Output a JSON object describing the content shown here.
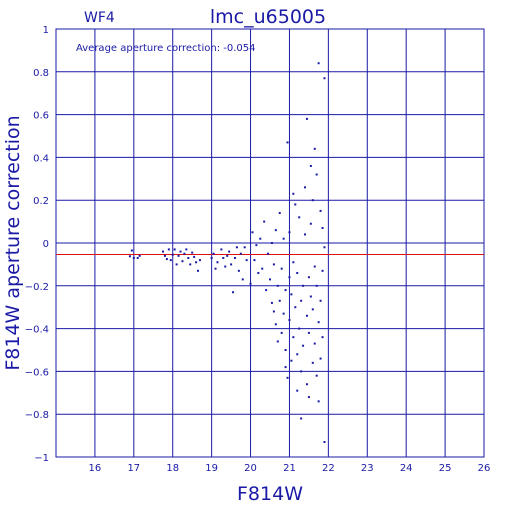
{
  "chart_data": {
    "type": "scatter",
    "title": "lmc_u65005",
    "chip_label": "WF4",
    "annotation": "Average aperture correction: -0.054",
    "xlabel": "F814W",
    "ylabel": "F814W aperture correction",
    "xlim": [
      15,
      26
    ],
    "ylim": [
      -1,
      1
    ],
    "x_ticks": [
      16,
      17,
      18,
      19,
      20,
      21,
      22,
      23,
      24,
      25,
      26
    ],
    "y_ticks": [
      -1,
      -0.8,
      -0.6,
      -0.4,
      -0.2,
      0,
      0.2,
      0.4,
      0.6,
      0.8,
      1
    ],
    "grid": true,
    "reference_line": {
      "y": -0.054,
      "color": "#dd1111"
    },
    "colors": {
      "axes": "#1a1aa6",
      "points": "#1a1aa6",
      "reference": "#dd1111"
    },
    "points": [
      [
        16.9,
        -0.062
      ],
      [
        16.95,
        -0.035
      ],
      [
        17.0,
        -0.07
      ],
      [
        17.1,
        -0.07
      ],
      [
        17.15,
        -0.06
      ],
      [
        17.75,
        -0.04
      ],
      [
        17.8,
        -0.06
      ],
      [
        17.85,
        -0.075
      ],
      [
        17.9,
        -0.03
      ],
      [
        17.95,
        -0.08
      ],
      [
        18.0,
        -0.055
      ],
      [
        18.05,
        -0.03
      ],
      [
        18.1,
        -0.1
      ],
      [
        18.15,
        -0.06
      ],
      [
        18.2,
        -0.04
      ],
      [
        18.25,
        -0.085
      ],
      [
        18.3,
        -0.05
      ],
      [
        18.35,
        -0.03
      ],
      [
        18.4,
        -0.07
      ],
      [
        18.45,
        -0.1
      ],
      [
        18.5,
        -0.045
      ],
      [
        18.55,
        -0.065
      ],
      [
        18.6,
        -0.09
      ],
      [
        18.65,
        -0.13
      ],
      [
        18.7,
        -0.08
      ],
      [
        19.0,
        -0.07
      ],
      [
        19.05,
        -0.05
      ],
      [
        19.1,
        -0.12
      ],
      [
        19.15,
        -0.09
      ],
      [
        19.25,
        -0.03
      ],
      [
        19.3,
        -0.07
      ],
      [
        19.35,
        -0.11
      ],
      [
        19.4,
        -0.06
      ],
      [
        19.45,
        -0.04
      ],
      [
        19.5,
        -0.1
      ],
      [
        19.55,
        -0.23
      ],
      [
        19.6,
        -0.07
      ],
      [
        19.65,
        -0.02
      ],
      [
        19.7,
        -0.13
      ],
      [
        19.75,
        -0.05
      ],
      [
        19.8,
        -0.17
      ],
      [
        19.85,
        -0.02
      ],
      [
        19.9,
        -0.08
      ],
      [
        20.0,
        -0.19
      ],
      [
        20.05,
        0.05
      ],
      [
        20.1,
        -0.08
      ],
      [
        20.15,
        -0.01
      ],
      [
        20.2,
        -0.14
      ],
      [
        20.25,
        0.02
      ],
      [
        20.3,
        -0.12
      ],
      [
        20.35,
        0.1
      ],
      [
        20.4,
        -0.22
      ],
      [
        20.45,
        -0.05
      ],
      [
        20.5,
        -0.17
      ],
      [
        20.55,
        0.0
      ],
      [
        20.55,
        -0.28
      ],
      [
        20.6,
        -0.32
      ],
      [
        20.6,
        -0.1
      ],
      [
        20.65,
        0.06
      ],
      [
        20.65,
        -0.38
      ],
      [
        20.7,
        -0.2
      ],
      [
        20.7,
        -0.46
      ],
      [
        20.75,
        -0.27
      ],
      [
        20.75,
        0.14
      ],
      [
        20.8,
        -0.12
      ],
      [
        20.8,
        -0.42
      ],
      [
        20.85,
        -0.33
      ],
      [
        20.85,
        0.02
      ],
      [
        20.9,
        -0.5
      ],
      [
        20.9,
        -0.22
      ],
      [
        20.9,
        -0.58
      ],
      [
        20.95,
        0.47
      ],
      [
        20.95,
        -0.63
      ],
      [
        21.0,
        -0.16
      ],
      [
        21.0,
        0.05
      ],
      [
        21.0,
        -0.36
      ],
      [
        21.05,
        -0.55
      ],
      [
        21.05,
        -0.24
      ],
      [
        21.1,
        -0.44
      ],
      [
        21.1,
        0.23
      ],
      [
        21.1,
        -0.09
      ],
      [
        21.15,
        -0.3
      ],
      [
        21.15,
        0.18
      ],
      [
        21.2,
        -0.52
      ],
      [
        21.2,
        -0.14
      ],
      [
        21.2,
        -0.69
      ],
      [
        21.25,
        -0.4
      ],
      [
        21.25,
        0.12
      ],
      [
        21.3,
        -0.27
      ],
      [
        21.3,
        -0.82
      ],
      [
        21.3,
        -0.6
      ],
      [
        21.35,
        -0.2
      ],
      [
        21.35,
        -0.48
      ],
      [
        21.4,
        0.26
      ],
      [
        21.4,
        0.04
      ],
      [
        21.45,
        -0.34
      ],
      [
        21.45,
        -0.66
      ],
      [
        21.45,
        0.58
      ],
      [
        21.5,
        -0.16
      ],
      [
        21.5,
        -0.42
      ],
      [
        21.5,
        -0.72
      ],
      [
        21.55,
        0.09
      ],
      [
        21.55,
        -0.25
      ],
      [
        21.55,
        0.36
      ],
      [
        21.6,
        -0.56
      ],
      [
        21.6,
        -0.31
      ],
      [
        21.6,
        0.2
      ],
      [
        21.65,
        -0.47
      ],
      [
        21.65,
        -0.11
      ],
      [
        21.65,
        0.44
      ],
      [
        21.7,
        -0.62
      ],
      [
        21.7,
        0.32
      ],
      [
        21.7,
        -0.2
      ],
      [
        21.75,
        0.84
      ],
      [
        21.75,
        -0.37
      ],
      [
        21.75,
        -0.74
      ],
      [
        21.8,
        0.15
      ],
      [
        21.8,
        -0.27
      ],
      [
        21.8,
        -0.54
      ],
      [
        21.85,
        0.07
      ],
      [
        21.85,
        -0.13
      ],
      [
        21.85,
        -0.44
      ],
      [
        21.9,
        0.77
      ],
      [
        21.9,
        -0.93
      ],
      [
        21.9,
        -0.02
      ]
    ]
  }
}
